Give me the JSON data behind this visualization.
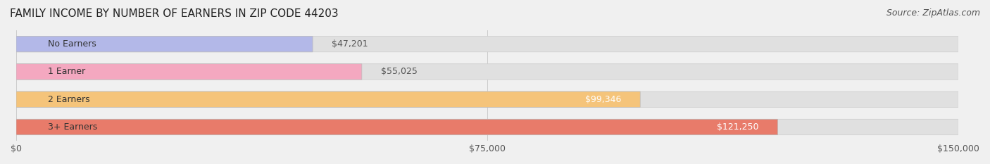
{
  "title": "FAMILY INCOME BY NUMBER OF EARNERS IN ZIP CODE 44203",
  "source": "Source: ZipAtlas.com",
  "categories": [
    "No Earners",
    "1 Earner",
    "2 Earners",
    "3+ Earners"
  ],
  "values": [
    47201,
    55025,
    99346,
    121250
  ],
  "labels": [
    "$47,201",
    "$55,025",
    "$99,346",
    "$121,250"
  ],
  "bar_colors": [
    "#b3b8e8",
    "#f4a8c0",
    "#f5c47a",
    "#e87b6a"
  ],
  "bar_edge_colors": [
    "#a0a5d5",
    "#e090a8",
    "#e0b060",
    "#d06050"
  ],
  "background_color": "#f0f0f0",
  "bar_bg_color": "#e8e8e8",
  "xlim": [
    0,
    150000
  ],
  "xticks": [
    0,
    75000,
    150000
  ],
  "xticklabels": [
    "$0",
    "$75,000",
    "$150,000"
  ],
  "title_fontsize": 11,
  "source_fontsize": 9,
  "label_fontsize": 9,
  "category_fontsize": 9,
  "tick_fontsize": 9
}
